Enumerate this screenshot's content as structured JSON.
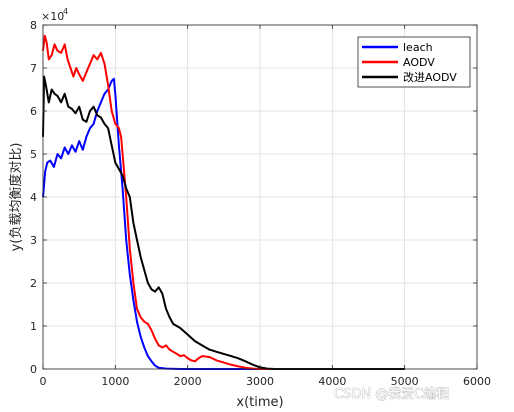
{
  "chart_data": {
    "type": "line",
    "title": "",
    "xlabel": "x(time)",
    "ylabel": "y(负载均衡度对比)",
    "xlim": [
      0,
      6000
    ],
    "ylim": [
      0,
      80000
    ],
    "y_exponent_label": "×10",
    "y_exponent_power": "4",
    "x_ticks": [
      0,
      1000,
      2000,
      3000,
      4000,
      5000,
      6000
    ],
    "y_ticks": [
      0,
      1,
      2,
      3,
      4,
      5,
      6,
      7,
      8
    ],
    "grid": true,
    "legend_position": "top-right",
    "series": [
      {
        "name": "leach",
        "color": "#0000ff",
        "points": [
          [
            0,
            40000
          ],
          [
            30,
            46000
          ],
          [
            60,
            48000
          ],
          [
            100,
            48500
          ],
          [
            150,
            47000
          ],
          [
            200,
            50000
          ],
          [
            250,
            49000
          ],
          [
            300,
            51500
          ],
          [
            350,
            50000
          ],
          [
            400,
            52000
          ],
          [
            450,
            50500
          ],
          [
            500,
            53000
          ],
          [
            550,
            51000
          ],
          [
            600,
            54000
          ],
          [
            650,
            56000
          ],
          [
            700,
            57000
          ],
          [
            750,
            60000
          ],
          [
            800,
            62000
          ],
          [
            850,
            64000
          ],
          [
            900,
            65000
          ],
          [
            950,
            67000
          ],
          [
            980,
            67500
          ],
          [
            1000,
            64000
          ],
          [
            1050,
            52000
          ],
          [
            1100,
            42000
          ],
          [
            1150,
            30000
          ],
          [
            1200,
            22000
          ],
          [
            1250,
            16000
          ],
          [
            1300,
            11000
          ],
          [
            1350,
            7500
          ],
          [
            1400,
            5000
          ],
          [
            1450,
            3000
          ],
          [
            1500,
            1800
          ],
          [
            1550,
            800
          ],
          [
            1600,
            300
          ],
          [
            1700,
            100
          ],
          [
            1900,
            0
          ],
          [
            5000,
            0
          ]
        ]
      },
      {
        "name": "AODV",
        "color": "#ff0000",
        "points": [
          [
            0,
            74000
          ],
          [
            25,
            77500
          ],
          [
            50,
            76000
          ],
          [
            80,
            72000
          ],
          [
            120,
            73000
          ],
          [
            160,
            75500
          ],
          [
            200,
            74000
          ],
          [
            250,
            73500
          ],
          [
            300,
            75500
          ],
          [
            340,
            72000
          ],
          [
            380,
            70000
          ],
          [
            420,
            68000
          ],
          [
            460,
            70000
          ],
          [
            500,
            68500
          ],
          [
            550,
            67000
          ],
          [
            600,
            69000
          ],
          [
            650,
            71000
          ],
          [
            700,
            73000
          ],
          [
            750,
            72000
          ],
          [
            800,
            73500
          ],
          [
            850,
            71000
          ],
          [
            900,
            66000
          ],
          [
            950,
            60000
          ],
          [
            1000,
            57000
          ],
          [
            1050,
            56000
          ],
          [
            1080,
            54000
          ],
          [
            1100,
            50000
          ],
          [
            1150,
            40000
          ],
          [
            1200,
            28000
          ],
          [
            1250,
            20000
          ],
          [
            1300,
            14000
          ],
          [
            1350,
            12000
          ],
          [
            1400,
            11000
          ],
          [
            1450,
            10500
          ],
          [
            1500,
            9000
          ],
          [
            1550,
            7000
          ],
          [
            1600,
            5500
          ],
          [
            1650,
            5000
          ],
          [
            1700,
            5500
          ],
          [
            1750,
            4500
          ],
          [
            1800,
            4000
          ],
          [
            1850,
            3500
          ],
          [
            1900,
            3000
          ],
          [
            1950,
            3200
          ],
          [
            2000,
            2500
          ],
          [
            2050,
            2000
          ],
          [
            2100,
            1800
          ],
          [
            2150,
            2500
          ],
          [
            2200,
            3000
          ],
          [
            2300,
            2800
          ],
          [
            2400,
            2000
          ],
          [
            2500,
            1500
          ],
          [
            2600,
            1000
          ],
          [
            2700,
            600
          ],
          [
            2800,
            300
          ],
          [
            2900,
            100
          ],
          [
            3000,
            0
          ],
          [
            5000,
            0
          ]
        ]
      },
      {
        "name": "改进AODV",
        "color": "#000000",
        "points": [
          [
            0,
            54000
          ],
          [
            15,
            68000
          ],
          [
            40,
            66000
          ],
          [
            80,
            62000
          ],
          [
            120,
            65000
          ],
          [
            160,
            64000
          ],
          [
            200,
            63500
          ],
          [
            250,
            62000
          ],
          [
            300,
            64000
          ],
          [
            350,
            61000
          ],
          [
            400,
            60500
          ],
          [
            450,
            59500
          ],
          [
            500,
            61000
          ],
          [
            550,
            58000
          ],
          [
            600,
            57500
          ],
          [
            650,
            60000
          ],
          [
            700,
            61000
          ],
          [
            750,
            59000
          ],
          [
            800,
            58500
          ],
          [
            850,
            57000
          ],
          [
            900,
            56000
          ],
          [
            950,
            52000
          ],
          [
            1000,
            48000
          ],
          [
            1050,
            46500
          ],
          [
            1100,
            45000
          ],
          [
            1150,
            42000
          ],
          [
            1200,
            40000
          ],
          [
            1250,
            34000
          ],
          [
            1300,
            30000
          ],
          [
            1350,
            26000
          ],
          [
            1400,
            23000
          ],
          [
            1450,
            20000
          ],
          [
            1500,
            18500
          ],
          [
            1550,
            18000
          ],
          [
            1600,
            19000
          ],
          [
            1650,
            17500
          ],
          [
            1700,
            14000
          ],
          [
            1750,
            12000
          ],
          [
            1800,
            10500
          ],
          [
            1850,
            10000
          ],
          [
            1900,
            9500
          ],
          [
            2000,
            8000
          ],
          [
            2100,
            6500
          ],
          [
            2200,
            5500
          ],
          [
            2300,
            4500
          ],
          [
            2400,
            4000
          ],
          [
            2500,
            3500
          ],
          [
            2600,
            3000
          ],
          [
            2700,
            2500
          ],
          [
            2800,
            1800
          ],
          [
            2900,
            1000
          ],
          [
            3000,
            400
          ],
          [
            3100,
            100
          ],
          [
            3200,
            0
          ],
          [
            5000,
            0
          ]
        ]
      }
    ]
  },
  "watermark": "CSDN @我爱C编程"
}
